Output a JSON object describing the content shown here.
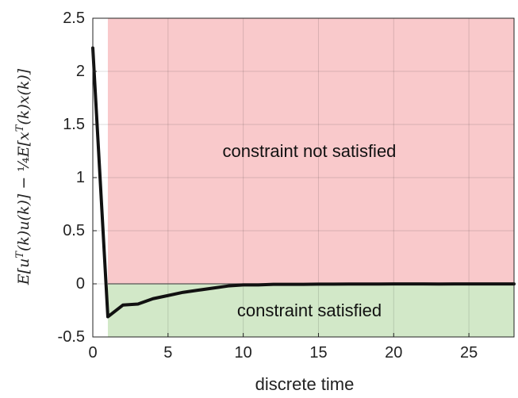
{
  "chart_data": {
    "type": "line",
    "title": "",
    "xlabel": "discrete time",
    "ylabel": "E[u^T(k)u(k)] − ¼E[x^T(k)x(k)]",
    "xlim": [
      0,
      28
    ],
    "ylim": [
      -0.5,
      2.5
    ],
    "x_ticks": [
      0,
      5,
      10,
      15,
      20,
      25
    ],
    "y_ticks": [
      -0.5,
      0,
      0.5,
      1,
      1.5,
      2,
      2.5
    ],
    "x_tick_labels": [
      "0",
      "5",
      "10",
      "15",
      "20",
      "25"
    ],
    "y_tick_labels": [
      "-0.5",
      "0",
      "0.5",
      "1",
      "1.5",
      "2",
      "2.5"
    ],
    "grid": true,
    "regions": [
      {
        "label": "constraint not satisfied",
        "x_range": [
          1,
          28
        ],
        "y_range": [
          0,
          2.5
        ],
        "color": "#f9c9cb"
      },
      {
        "label": "constraint satisfied",
        "x_range": [
          1,
          28
        ],
        "y_range": [
          -0.5,
          0
        ],
        "color": "#d2e8c8"
      }
    ],
    "series": [
      {
        "color": "#111111",
        "x": [
          0,
          1,
          2,
          3,
          4,
          5,
          6,
          7,
          8,
          9,
          10,
          11,
          12,
          13,
          14,
          15,
          16,
          17,
          18,
          19,
          20,
          21,
          22,
          23,
          24,
          25,
          26,
          27,
          28
        ],
        "y": [
          2.22,
          -0.31,
          -0.2,
          -0.19,
          -0.14,
          -0.11,
          -0.08,
          -0.06,
          -0.04,
          -0.02,
          -0.01,
          -0.01,
          -0.005,
          -0.005,
          -0.005,
          -0.003,
          -0.003,
          -0.002,
          -0.002,
          -0.002,
          -0.001,
          -0.001,
          -0.001,
          -0.002,
          -0.001,
          -0.001,
          -0.001,
          -0.001,
          -0.001
        ]
      }
    ]
  }
}
